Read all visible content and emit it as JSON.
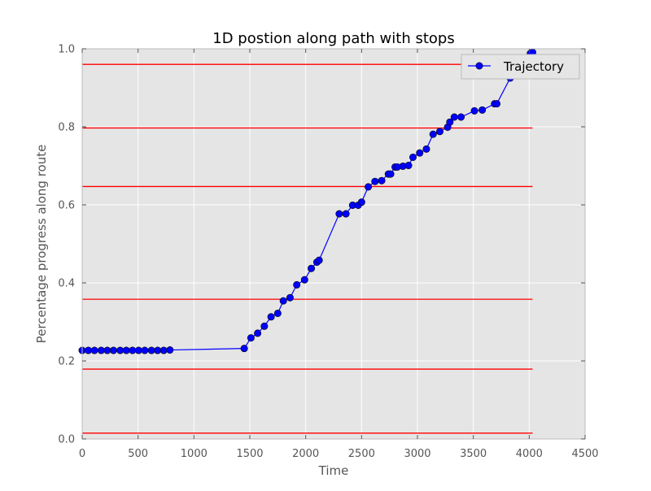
{
  "chart_data": {
    "type": "line",
    "title": "1D postion along path with stops",
    "xlabel": "Time",
    "ylabel": "Percentage progress along route",
    "xlim": [
      0,
      4500
    ],
    "ylim": [
      0.0,
      1.0
    ],
    "xticks": [
      0,
      500,
      1000,
      1500,
      2000,
      2500,
      3000,
      3500,
      4000,
      4500
    ],
    "yticks": [
      0.0,
      0.2,
      0.4,
      0.6,
      0.8,
      1.0
    ],
    "grid": true,
    "legend": {
      "position": "top-right",
      "entries": [
        "Trajectory"
      ]
    },
    "colors": {
      "series": "#0000ff",
      "stops": "#ff0000",
      "plot_bg": "#e5e5e5",
      "grid": "#ffffff"
    },
    "series": [
      {
        "name": "Trajectory",
        "marker": "circle",
        "points": [
          [
            0,
            0.227
          ],
          [
            55,
            0.227
          ],
          [
            110,
            0.227
          ],
          [
            170,
            0.227
          ],
          [
            225,
            0.227
          ],
          [
            280,
            0.227
          ],
          [
            340,
            0.227
          ],
          [
            395,
            0.227
          ],
          [
            450,
            0.227
          ],
          [
            505,
            0.227
          ],
          [
            560,
            0.227
          ],
          [
            620,
            0.227
          ],
          [
            675,
            0.227
          ],
          [
            730,
            0.227
          ],
          [
            785,
            0.228
          ],
          [
            1450,
            0.232
          ],
          [
            1510,
            0.259
          ],
          [
            1570,
            0.271
          ],
          [
            1630,
            0.289
          ],
          [
            1690,
            0.313
          ],
          [
            1750,
            0.322
          ],
          [
            1800,
            0.354
          ],
          [
            1860,
            0.362
          ],
          [
            1920,
            0.395
          ],
          [
            1990,
            0.408
          ],
          [
            2050,
            0.437
          ],
          [
            2100,
            0.453
          ],
          [
            2120,
            0.458
          ],
          [
            2300,
            0.577
          ],
          [
            2360,
            0.577
          ],
          [
            2420,
            0.599
          ],
          [
            2470,
            0.599
          ],
          [
            2500,
            0.607
          ],
          [
            2560,
            0.646
          ],
          [
            2620,
            0.66
          ],
          [
            2680,
            0.662
          ],
          [
            2740,
            0.679
          ],
          [
            2760,
            0.679
          ],
          [
            2800,
            0.697
          ],
          [
            2820,
            0.697
          ],
          [
            2870,
            0.699
          ],
          [
            2920,
            0.701
          ],
          [
            2960,
            0.722
          ],
          [
            3020,
            0.733
          ],
          [
            3080,
            0.743
          ],
          [
            3140,
            0.781
          ],
          [
            3200,
            0.788
          ],
          [
            3270,
            0.799
          ],
          [
            3290,
            0.812
          ],
          [
            3330,
            0.825
          ],
          [
            3390,
            0.825
          ],
          [
            3510,
            0.841
          ],
          [
            3580,
            0.843
          ],
          [
            3690,
            0.859
          ],
          [
            3710,
            0.859
          ],
          [
            3830,
            0.925
          ],
          [
            4010,
            0.988
          ],
          [
            4030,
            0.991
          ]
        ]
      }
    ],
    "stop_lines": {
      "x_range": [
        0,
        4030
      ],
      "y": [
        0.015,
        0.179,
        0.358,
        0.647,
        0.797,
        0.96
      ]
    }
  }
}
